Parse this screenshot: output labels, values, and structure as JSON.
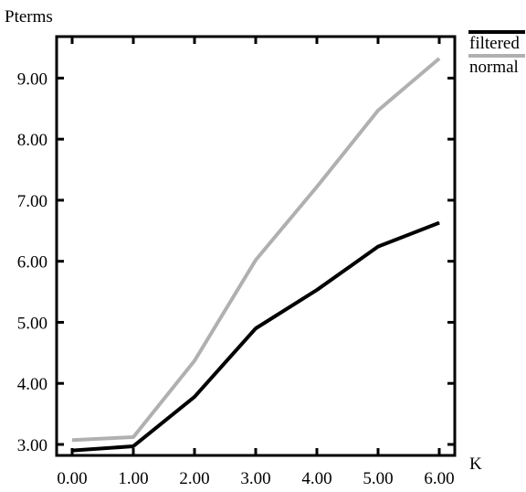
{
  "chart_data": {
    "type": "line",
    "xlabel": "K",
    "ylabel": "Pterms",
    "xlim": [
      0,
      6
    ],
    "ylim": [
      2.82,
      9.68
    ],
    "x_ticks": [
      "0.00",
      "1.00",
      "2.00",
      "3.00",
      "4.00",
      "5.00",
      "6.00"
    ],
    "y_ticks": [
      "3.00",
      "4.00",
      "5.00",
      "6.00",
      "7.00",
      "8.00",
      "9.00"
    ],
    "x_tick_values": [
      0,
      1,
      2,
      3,
      4,
      5,
      6
    ],
    "y_tick_values": [
      3,
      4,
      5,
      6,
      7,
      8,
      9
    ],
    "x": [
      0,
      1,
      2,
      3,
      4,
      5,
      6
    ],
    "legend_position": "top-right",
    "grid": false,
    "series": [
      {
        "name": "filtered",
        "color": "#000000",
        "values": [
          2.9,
          2.97,
          3.78,
          4.9,
          5.53,
          6.24,
          6.63
        ]
      },
      {
        "name": "normal",
        "color": "#b0b0b0",
        "values": [
          3.07,
          3.12,
          4.37,
          6.02,
          7.22,
          8.47,
          9.32
        ]
      }
    ]
  }
}
